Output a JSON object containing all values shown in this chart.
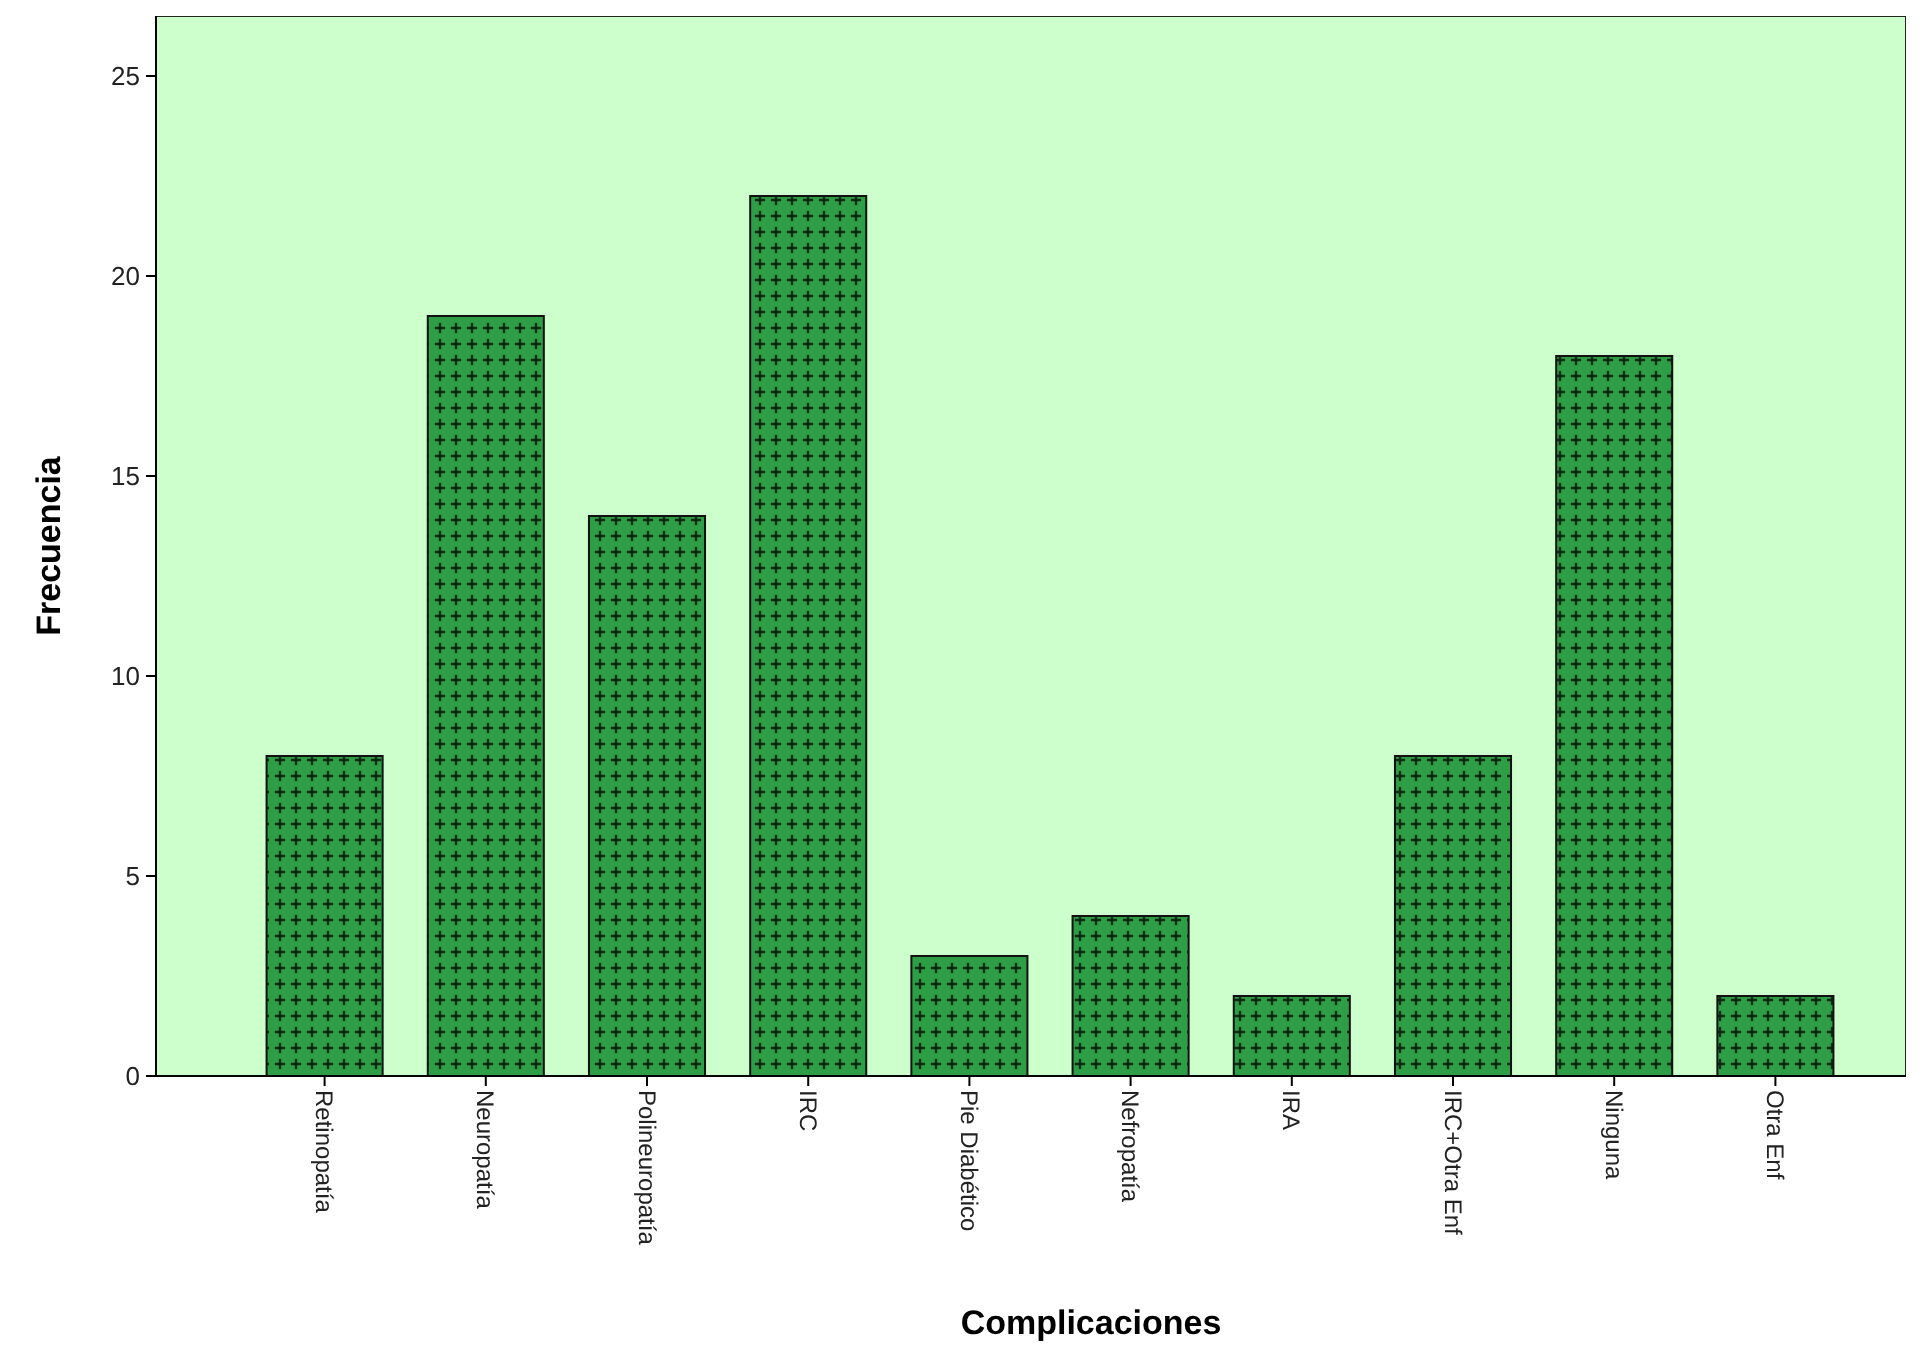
{
  "chart_data": {
    "type": "bar",
    "xlabel": "Complicaciones",
    "ylabel": "Frecuencia",
    "categories": [
      "Retinopatía",
      "Neuropatía",
      "Polineuropatía",
      "IRC",
      "Pie Diabético",
      "Nefropatía",
      "IRA",
      "IRC+Otra Enf",
      "Ninguna",
      "Otra Enf"
    ],
    "values": [
      8,
      19,
      14,
      22,
      3,
      4,
      2,
      8,
      18,
      2
    ],
    "color": "#2e9e46",
    "ylim": [
      0,
      26.5
    ],
    "yticks": [
      0,
      5,
      10,
      15,
      20,
      25
    ],
    "grid": false
  }
}
